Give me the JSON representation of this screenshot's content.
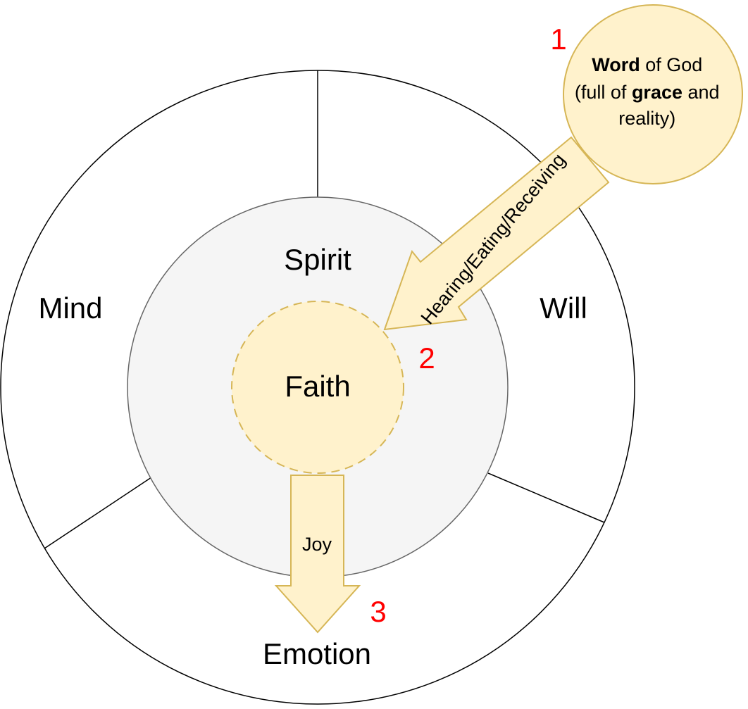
{
  "diagram": {
    "regions": {
      "mind": "Mind",
      "will": "Will",
      "emotion": "Emotion",
      "spirit": "Spirit",
      "faith": "Faith"
    },
    "word_of_god": {
      "line1_bold": "Word",
      "line1_rest": " of God",
      "line2_start": "(full of ",
      "line2_bold": "grace",
      "line2_end": " and",
      "line3": "reality)"
    },
    "arrows": {
      "hearing_label": "Hearing/Eating/Receiving",
      "joy_label": "Joy"
    },
    "step_numbers": {
      "one": "1",
      "two": "2",
      "three": "3"
    },
    "colors": {
      "outline": "#000000",
      "spirit_fill": "#f5f5f5",
      "spirit_stroke": "#666666",
      "cream_fill": "#fff2cc",
      "gold_stroke": "#d6b656",
      "step_number": "#ff0000"
    }
  }
}
